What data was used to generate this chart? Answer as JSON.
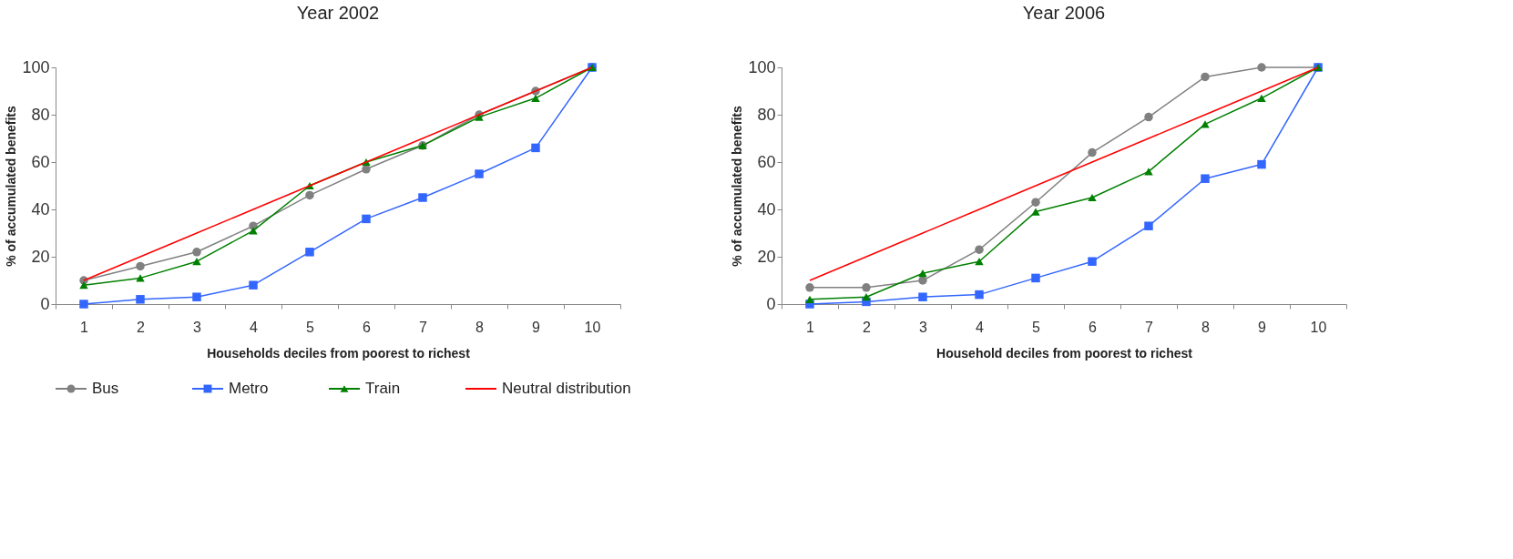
{
  "chart_data": [
    {
      "type": "line",
      "title": "Year 2002",
      "xlabel": "Households deciles from poorest to richest",
      "ylabel": "% of accumulated benefits",
      "categories": [
        "1",
        "2",
        "3",
        "4",
        "5",
        "6",
        "7",
        "8",
        "9",
        "10"
      ],
      "ylim": [
        0,
        100
      ],
      "yticks": [
        0,
        20,
        40,
        60,
        80,
        100
      ],
      "legend": "bottom",
      "series": [
        {
          "name": "Bus",
          "color": "#808080",
          "marker": "circle",
          "values": [
            10,
            16,
            22,
            33,
            46,
            57,
            67,
            80,
            90,
            100
          ]
        },
        {
          "name": "Metro",
          "color": "#3366ff",
          "marker": "square",
          "values": [
            0,
            2,
            3,
            8,
            22,
            36,
            45,
            55,
            66,
            100
          ]
        },
        {
          "name": "Train",
          "color": "#008000",
          "marker": "triangle",
          "values": [
            8,
            11,
            18,
            31,
            50,
            60,
            67,
            79,
            87,
            100
          ]
        },
        {
          "name": "Neutral distribution",
          "color": "#ff0000",
          "marker": "none",
          "values": [
            10,
            20,
            30,
            40,
            50,
            60,
            70,
            80,
            90,
            100
          ]
        }
      ]
    },
    {
      "type": "line",
      "title": "Year 2006",
      "xlabel": "Household deciles from poorest to richest",
      "ylabel": "% of accumulated benefits",
      "categories": [
        "1",
        "2",
        "3",
        "4",
        "5",
        "6",
        "7",
        "8",
        "9",
        "10"
      ],
      "ylim": [
        0,
        100
      ],
      "yticks": [
        0,
        20,
        40,
        60,
        80,
        100
      ],
      "series": [
        {
          "name": "Bus",
          "color": "#808080",
          "marker": "circle",
          "values": [
            7,
            7,
            10,
            23,
            43,
            64,
            79,
            96,
            100,
            100
          ]
        },
        {
          "name": "Metro",
          "color": "#3366ff",
          "marker": "square",
          "values": [
            0,
            1,
            3,
            4,
            11,
            18,
            33,
            53,
            59,
            100
          ]
        },
        {
          "name": "Train",
          "color": "#008000",
          "marker": "triangle",
          "values": [
            2,
            3,
            13,
            18,
            39,
            45,
            56,
            76,
            87,
            100
          ]
        },
        {
          "name": "Neutral distribution",
          "color": "#ff0000",
          "marker": "none",
          "values": [
            10,
            20,
            30,
            40,
            50,
            60,
            70,
            80,
            90,
            100
          ]
        }
      ]
    }
  ]
}
